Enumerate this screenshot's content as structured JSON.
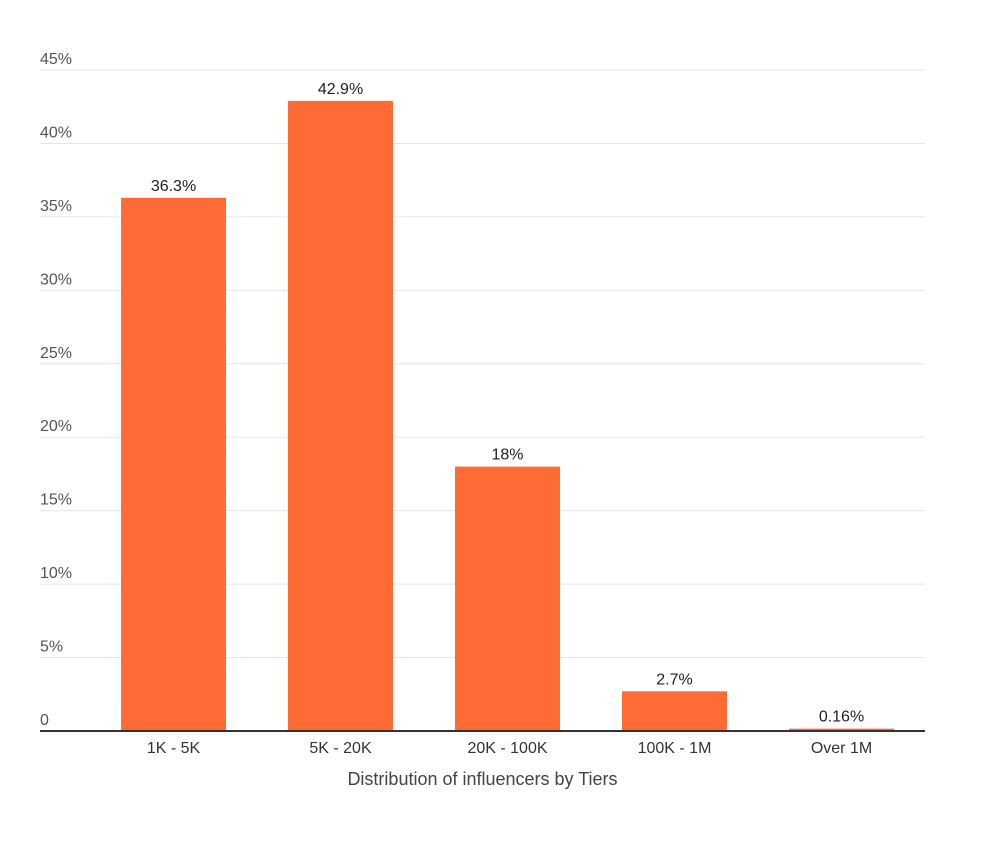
{
  "chart_data": {
    "type": "bar",
    "categories": [
      "1K - 5K",
      "5K - 20K",
      "20K - 100K",
      "100K - 1M",
      "Over 1M"
    ],
    "values": [
      36.3,
      42.9,
      18,
      2.7,
      0.16
    ],
    "data_labels": [
      "36.3%",
      "42.9%",
      "18%",
      "2.7%",
      "0.16%"
    ],
    "y_ticks": [
      0,
      5,
      10,
      15,
      20,
      25,
      30,
      35,
      40,
      45
    ],
    "y_tick_labels": [
      "0",
      "5%",
      "10%",
      "15%",
      "20%",
      "25%",
      "30%",
      "35%",
      "40%",
      "45%"
    ],
    "ylim": [
      0,
      45
    ],
    "xlabel": "Distribution of influencers by Tiers",
    "ylabel": "",
    "title": "",
    "grid": true,
    "legend": "none",
    "bar_color": "#ff6b35",
    "grid_color": "#e6e6e6",
    "axis_color": "#333333"
  }
}
